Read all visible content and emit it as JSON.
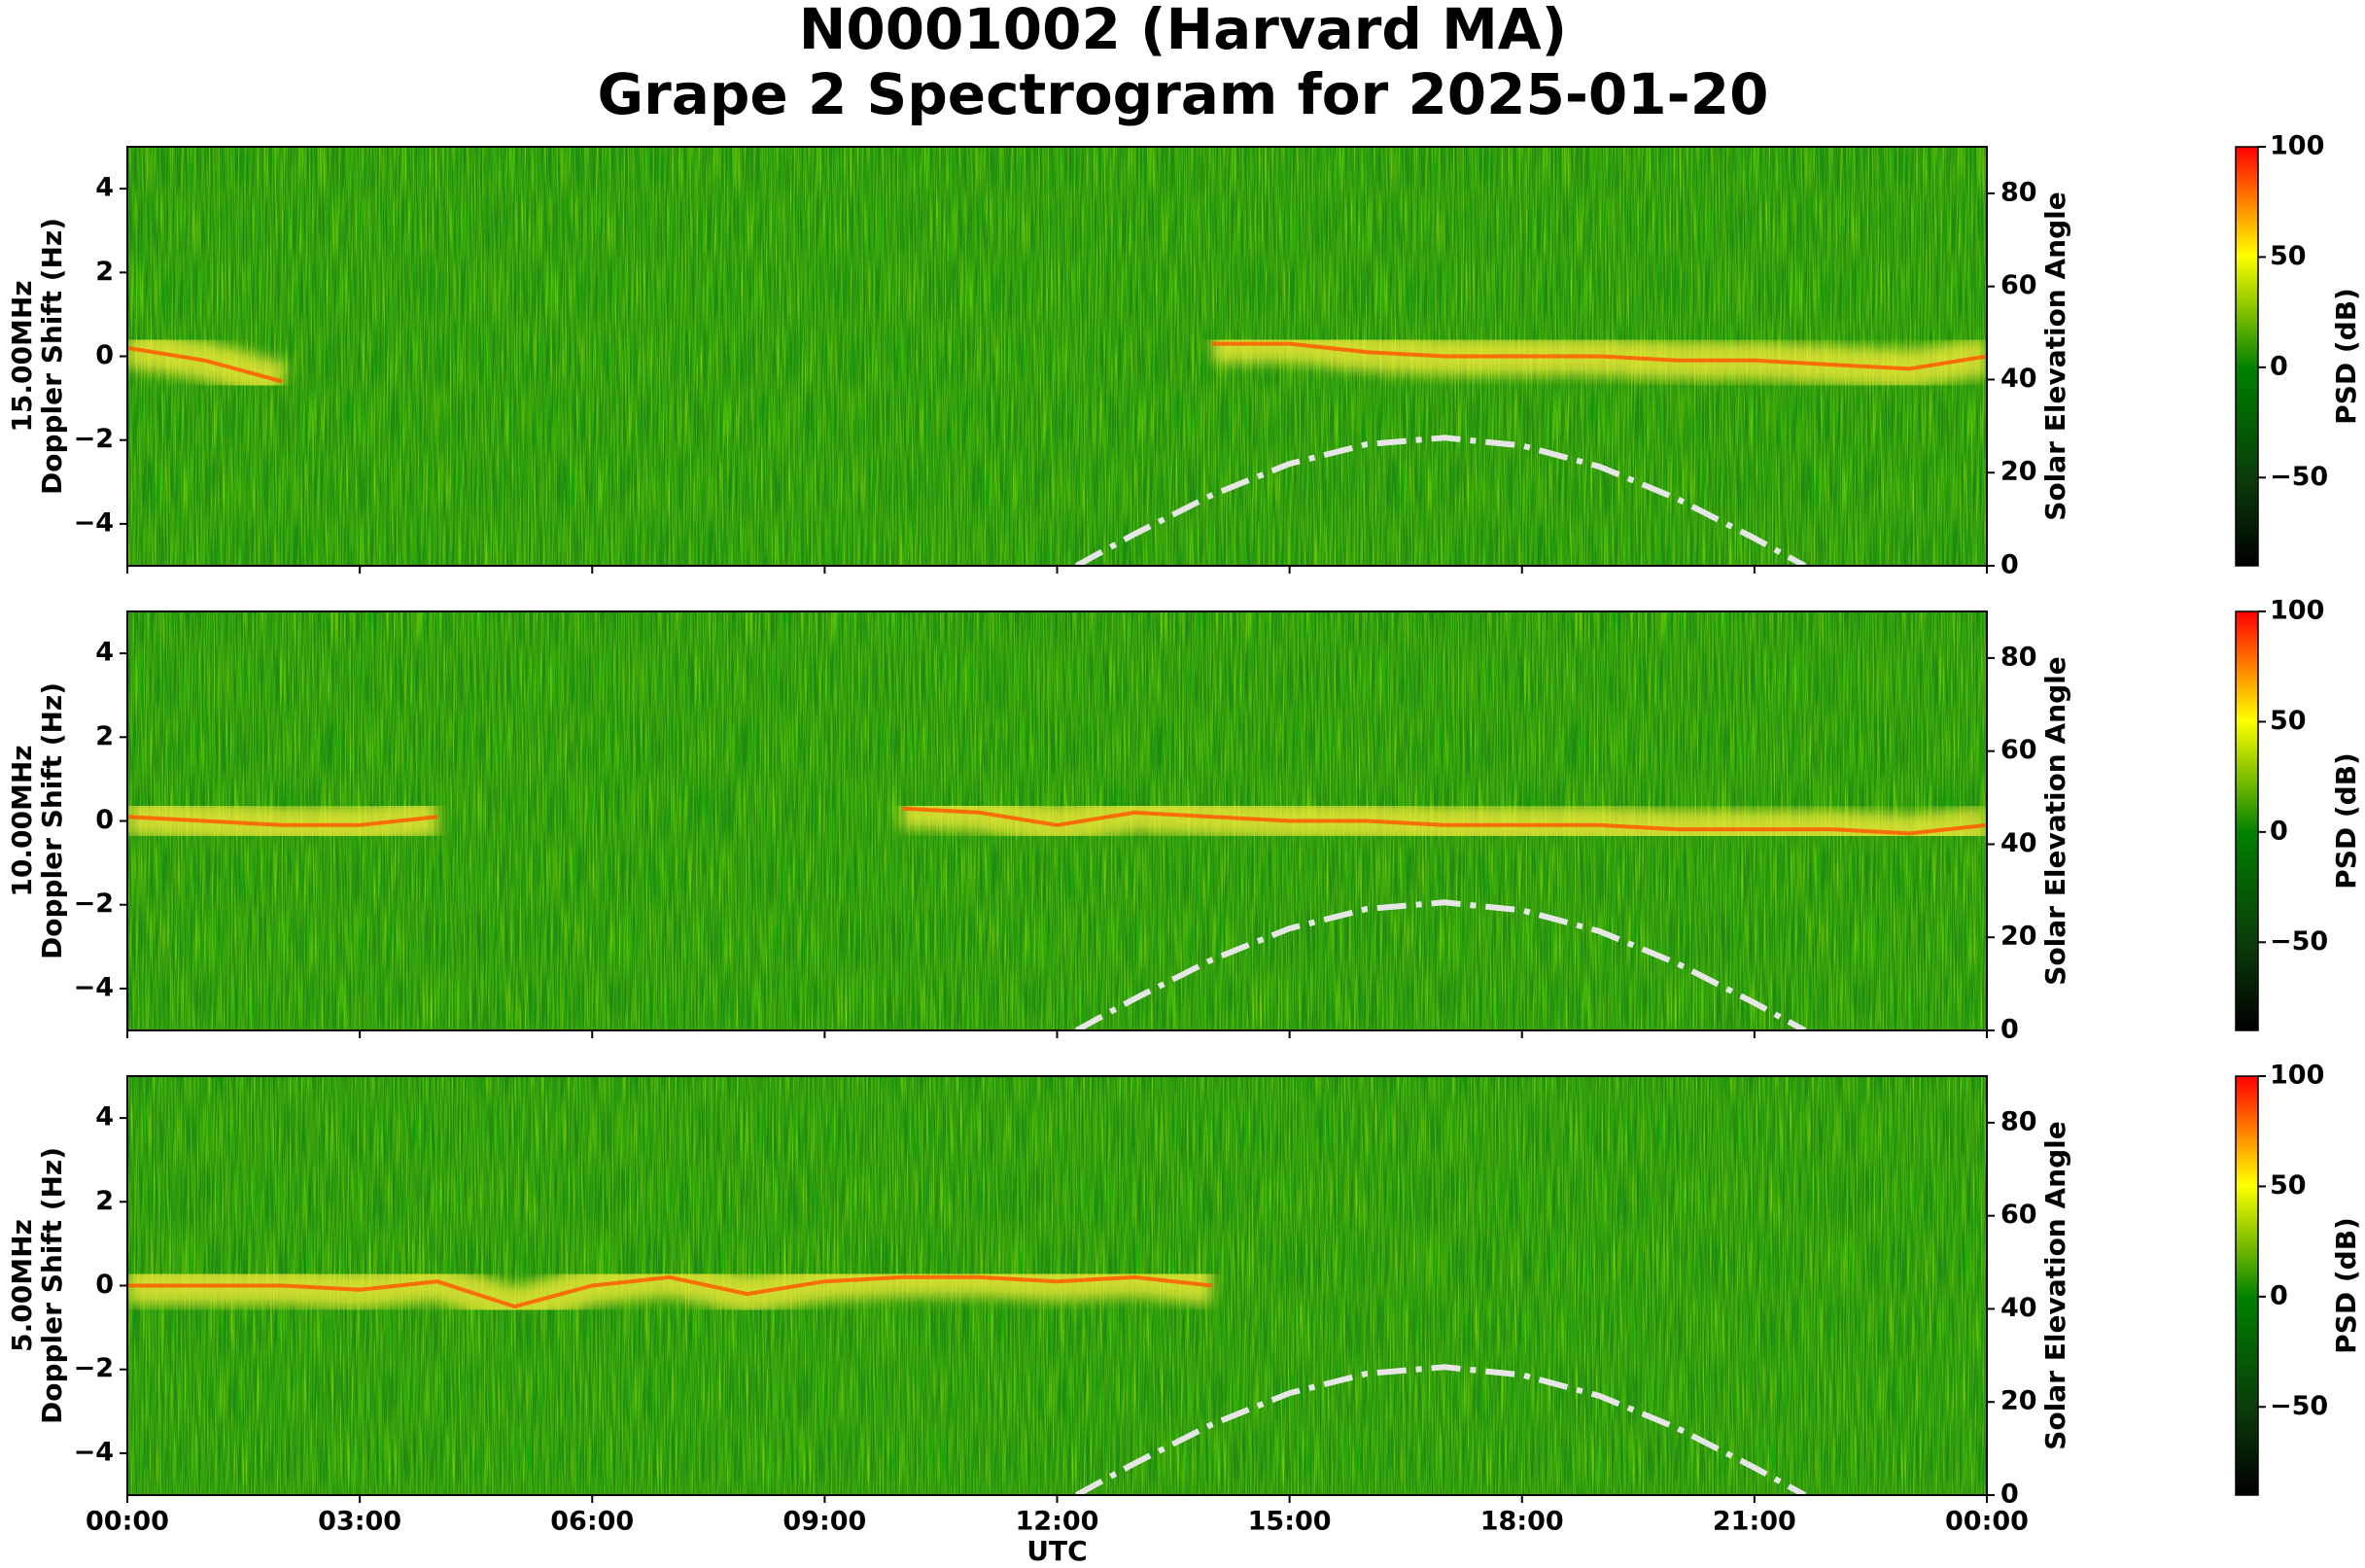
{
  "title": "N0001002 (Harvard MA)",
  "subtitle": "Grape 2 Spectrogram for 2025-01-20",
  "chart_data": [
    {
      "type": "spectrogram",
      "band": "15.00MHz",
      "ylabel": "Doppler Shift (Hz)",
      "y2label": "Solar Elevation Angle",
      "xlim": [
        0,
        24
      ],
      "xticks": [
        0,
        3,
        6,
        9,
        12,
        15,
        18,
        21,
        24
      ],
      "ylim": [
        -5,
        5
      ],
      "yticks": [
        {
          "value": -4,
          "label": "−4"
        },
        {
          "value": -2,
          "label": "−2"
        },
        0,
        2,
        4
      ],
      "y2lim": [
        0,
        90
      ],
      "y2ticks": [
        0,
        20,
        40,
        60,
        80
      ],
      "series": [
        {
          "color": "#ff5a00",
          "x": [
            0,
            1,
            2,
            3,
            4,
            5,
            6,
            7,
            8,
            9,
            10,
            11,
            12,
            13,
            14,
            15,
            16,
            17,
            18,
            19,
            20,
            21,
            22,
            23,
            24
          ],
          "values": [
            0.2,
            -0.1,
            -0.6,
            null,
            null,
            null,
            null,
            null,
            null,
            null,
            null,
            null,
            null,
            null,
            0.3,
            0.3,
            0.1,
            0.0,
            0.0,
            0.0,
            -0.1,
            -0.1,
            -0.2,
            -0.3,
            0.0
          ]
        },
        {
          "axis": "y2",
          "color": "#e6e6e6",
          "linestyle": "dashdot",
          "x": [
            12.25,
            12.5,
            13,
            14,
            15,
            16,
            17,
            18,
            19,
            20,
            21,
            21.65
          ],
          "values": [
            0,
            2.3,
            6.8,
            15.2,
            21.9,
            26.1,
            27.5,
            25.8,
            21.3,
            14.4,
            5.9,
            0
          ]
        }
      ],
      "colorbar": {
        "label": "PSD (dB)",
        "lim": [
          -90,
          100
        ],
        "ticks": [
          {
            "value": -50,
            "label": "−50"
          },
          0,
          50,
          100
        ]
      }
    },
    {
      "type": "spectrogram",
      "band": "10.00MHz",
      "ylabel": "Doppler Shift (Hz)",
      "y2label": "Solar Elevation Angle",
      "xlim": [
        0,
        24
      ],
      "xticks": [
        0,
        3,
        6,
        9,
        12,
        15,
        18,
        21,
        24
      ],
      "ylim": [
        -5,
        5
      ],
      "yticks": [
        {
          "value": -4,
          "label": "−4"
        },
        {
          "value": -2,
          "label": "−2"
        },
        0,
        2,
        4
      ],
      "y2lim": [
        0,
        90
      ],
      "y2ticks": [
        0,
        20,
        40,
        60,
        80
      ],
      "series": [
        {
          "color": "#ff5a00",
          "x": [
            0,
            1,
            2,
            3,
            4,
            5,
            6,
            7,
            8,
            9,
            10,
            11,
            12,
            13,
            14,
            15,
            16,
            17,
            18,
            19,
            20,
            21,
            22,
            23,
            24
          ],
          "values": [
            0.1,
            0.0,
            -0.1,
            -0.1,
            0.1,
            null,
            null,
            null,
            null,
            null,
            0.3,
            0.2,
            -0.1,
            0.2,
            0.1,
            0.0,
            0.0,
            -0.1,
            -0.1,
            -0.1,
            -0.2,
            -0.2,
            -0.2,
            -0.3,
            -0.1
          ]
        },
        {
          "axis": "y2",
          "color": "#e6e6e6",
          "linestyle": "dashdot",
          "x": [
            12.25,
            12.5,
            13,
            14,
            15,
            16,
            17,
            18,
            19,
            20,
            21,
            21.65
          ],
          "values": [
            0,
            2.3,
            6.8,
            15.2,
            21.9,
            26.1,
            27.5,
            25.8,
            21.3,
            14.4,
            5.9,
            0
          ]
        }
      ],
      "colorbar": {
        "label": "PSD (dB)",
        "lim": [
          -90,
          100
        ],
        "ticks": [
          {
            "value": -50,
            "label": "−50"
          },
          0,
          50,
          100
        ]
      }
    },
    {
      "type": "spectrogram",
      "band": "5.00MHz",
      "ylabel": "Doppler Shift (Hz)",
      "y2label": "Solar Elevation Angle",
      "xlabel": "UTC",
      "xlim": [
        0,
        24
      ],
      "xticks": [
        {
          "value": 0,
          "label": "00:00"
        },
        {
          "value": 3,
          "label": "03:00"
        },
        {
          "value": 6,
          "label": "06:00"
        },
        {
          "value": 9,
          "label": "09:00"
        },
        {
          "value": 12,
          "label": "12:00"
        },
        {
          "value": 15,
          "label": "15:00"
        },
        {
          "value": 18,
          "label": "18:00"
        },
        {
          "value": 21,
          "label": "21:00"
        },
        {
          "value": 24,
          "label": "00:00"
        }
      ],
      "ylim": [
        -5,
        5
      ],
      "yticks": [
        {
          "value": -4,
          "label": "−4"
        },
        {
          "value": -2,
          "label": "−2"
        },
        0,
        2,
        4
      ],
      "y2lim": [
        0,
        90
      ],
      "y2ticks": [
        0,
        20,
        40,
        60,
        80
      ],
      "series": [
        {
          "color": "#ff5a00",
          "x": [
            0,
            1,
            2,
            3,
            4,
            5,
            6,
            7,
            8,
            9,
            10,
            11,
            12,
            13,
            14,
            15,
            16,
            17,
            18,
            19,
            20,
            21,
            22,
            23,
            24
          ],
          "values": [
            0.0,
            0.0,
            0.0,
            -0.1,
            0.1,
            -0.5,
            0.0,
            0.2,
            -0.2,
            0.1,
            0.2,
            0.2,
            0.1,
            0.2,
            0.0,
            null,
            null,
            null,
            null,
            null,
            null,
            null,
            null,
            null,
            null
          ]
        },
        {
          "axis": "y2",
          "color": "#e6e6e6",
          "linestyle": "dashdot",
          "x": [
            12.25,
            12.5,
            13,
            14,
            15,
            16,
            17,
            18,
            19,
            20,
            21,
            21.65
          ],
          "values": [
            0,
            2.3,
            6.8,
            15.2,
            21.9,
            26.1,
            27.5,
            25.8,
            21.3,
            14.4,
            5.9,
            0
          ]
        }
      ],
      "colorbar": {
        "label": "PSD (dB)",
        "lim": [
          -90,
          100
        ],
        "ticks": [
          {
            "value": -50,
            "label": "−50"
          },
          0,
          50,
          100
        ]
      }
    }
  ]
}
